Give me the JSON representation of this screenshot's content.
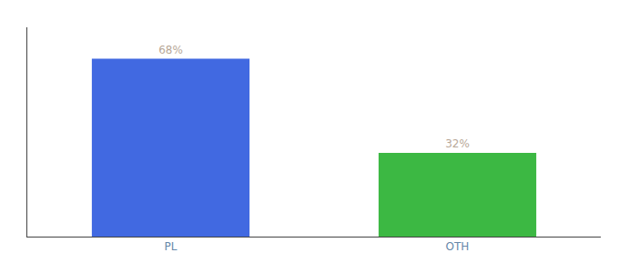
{
  "chart_data": {
    "type": "bar",
    "categories": [
      "PL",
      "OTH"
    ],
    "values": [
      68,
      32
    ],
    "value_labels": [
      "68%",
      "32%"
    ],
    "colors": [
      "#4169E1",
      "#3CB843"
    ],
    "ylim": [
      0,
      80
    ],
    "grid": false,
    "data_labels": true,
    "tick_labels": "x"
  }
}
